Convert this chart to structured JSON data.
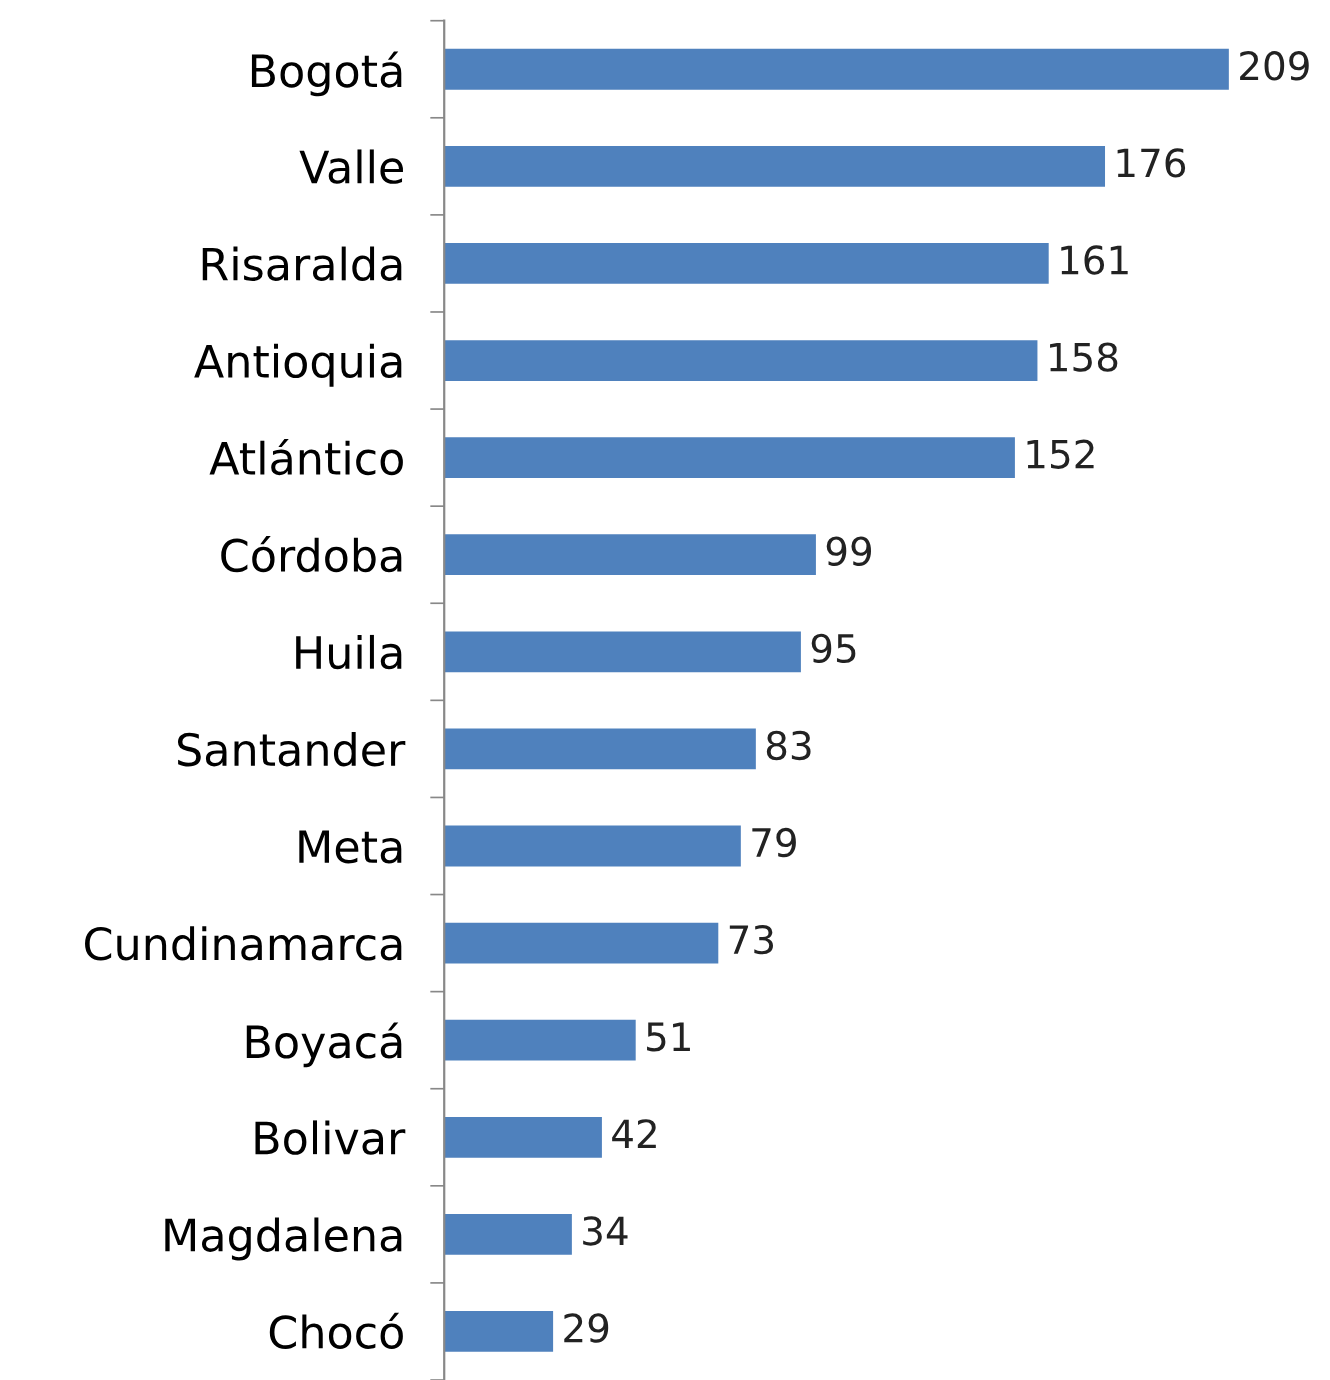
{
  "chart_data": {
    "type": "bar",
    "orientation": "horizontal",
    "categories": [
      "Bogotá",
      "Valle",
      "Risaralda",
      "Antioquia",
      "Atlántico",
      "Córdoba",
      "Huila",
      "Santander",
      "Meta",
      "Cundinamarca",
      "Boyacá",
      "Bolivar",
      "Magdalena",
      "Chocó"
    ],
    "values": [
      209,
      176,
      161,
      158,
      152,
      99,
      95,
      83,
      79,
      73,
      51,
      42,
      34,
      29
    ],
    "color": "#4f81bd",
    "data_labels": true
  }
}
